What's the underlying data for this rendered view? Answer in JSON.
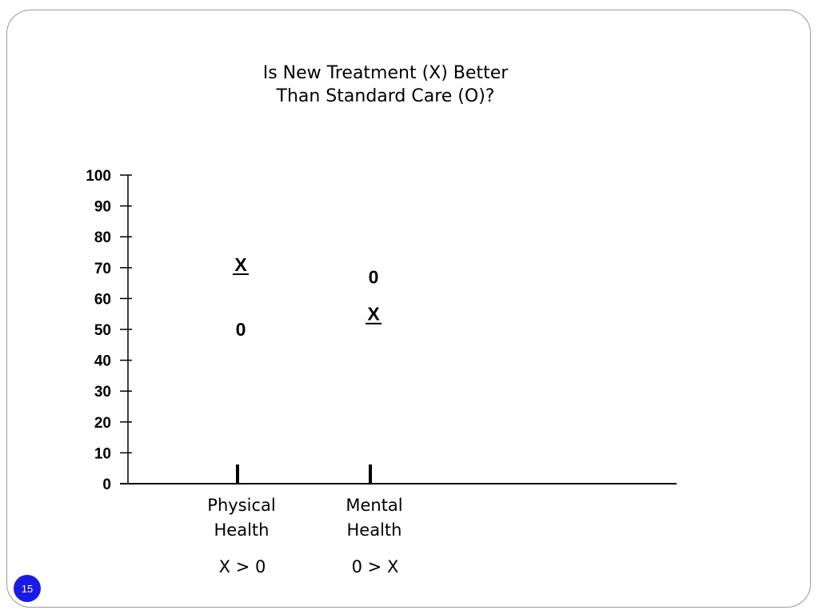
{
  "slide": {
    "title": "Is New Treatment (X) Better\nThan Standard Care (O)?",
    "page_number": "15"
  },
  "chart_data": {
    "type": "scatter",
    "title": "Is New Treatment (X) Better\nThan Standard Care (O)?",
    "categories": [
      "Physical\nHealth",
      "Mental\nHealth"
    ],
    "yticks": [
      "0",
      "10",
      "20",
      "30",
      "40",
      "50",
      "60",
      "70",
      "80",
      "90",
      "100"
    ],
    "ylim": [
      0,
      100
    ],
    "series": [
      {
        "marker": "X",
        "values": [
          71,
          55
        ]
      },
      {
        "marker": "0",
        "values": [
          50,
          67
        ]
      }
    ],
    "comparisons": [
      "X > 0",
      "0 > X"
    ],
    "grid": false,
    "xlabel": "",
    "ylabel": ""
  }
}
